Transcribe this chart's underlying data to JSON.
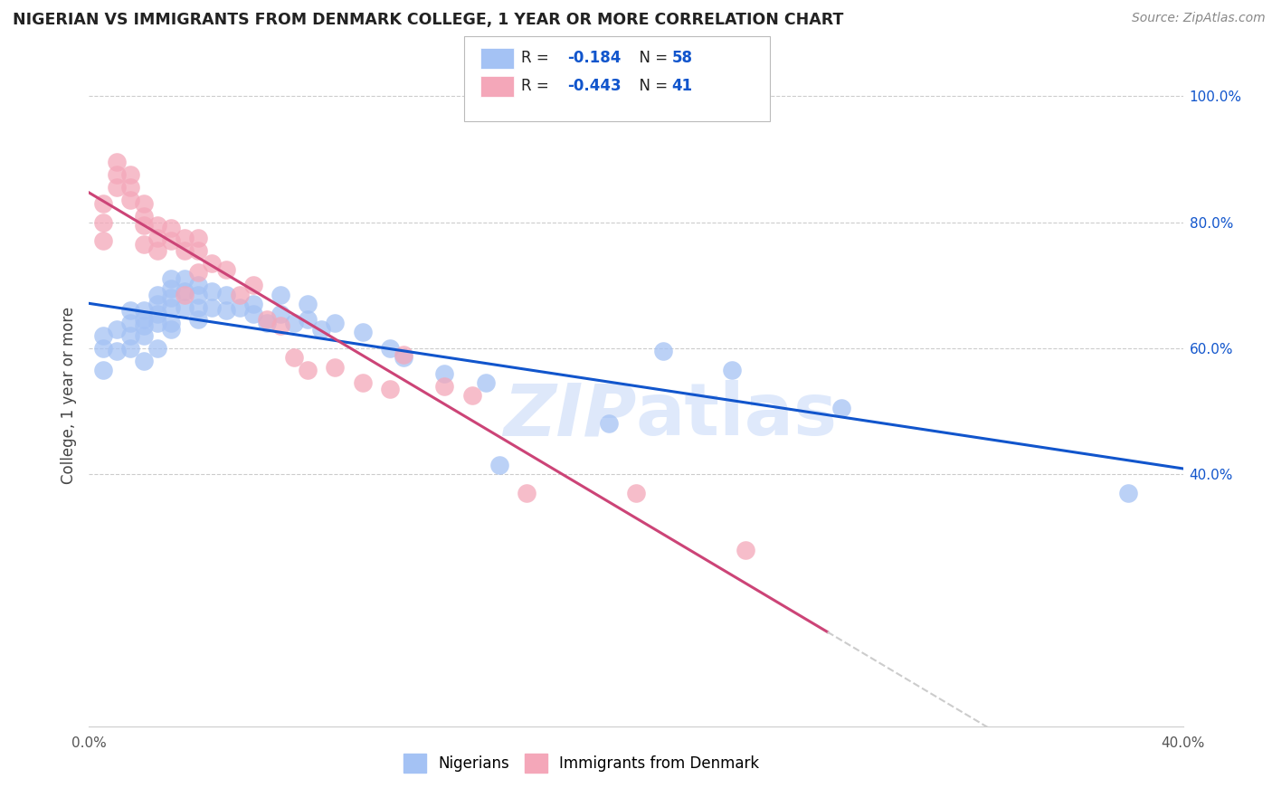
{
  "title": "NIGERIAN VS IMMIGRANTS FROM DENMARK COLLEGE, 1 YEAR OR MORE CORRELATION CHART",
  "source": "Source: ZipAtlas.com",
  "ylabel": "College, 1 year or more",
  "xlim": [
    0.0,
    0.4
  ],
  "ylim": [
    0.0,
    1.05
  ],
  "blue_color": "#a4c2f4",
  "pink_color": "#f4a7b9",
  "blue_line_color": "#1155cc",
  "pink_line_color": "#cc4477",
  "dashed_color": "#cccccc",
  "right_tick_color": "#1155cc",
  "watermark_color": "#c9daf8",
  "blue_scatter_x": [
    0.005,
    0.005,
    0.005,
    0.01,
    0.01,
    0.015,
    0.015,
    0.015,
    0.015,
    0.02,
    0.02,
    0.02,
    0.02,
    0.02,
    0.025,
    0.025,
    0.025,
    0.025,
    0.025,
    0.03,
    0.03,
    0.03,
    0.03,
    0.03,
    0.03,
    0.035,
    0.035,
    0.035,
    0.04,
    0.04,
    0.04,
    0.04,
    0.045,
    0.045,
    0.05,
    0.05,
    0.055,
    0.06,
    0.06,
    0.065,
    0.07,
    0.07,
    0.075,
    0.08,
    0.08,
    0.085,
    0.09,
    0.1,
    0.11,
    0.115,
    0.13,
    0.145,
    0.15,
    0.19,
    0.21,
    0.235,
    0.275,
    0.38
  ],
  "blue_scatter_y": [
    0.62,
    0.6,
    0.565,
    0.63,
    0.595,
    0.66,
    0.64,
    0.62,
    0.6,
    0.66,
    0.645,
    0.635,
    0.62,
    0.58,
    0.685,
    0.67,
    0.655,
    0.64,
    0.6,
    0.71,
    0.695,
    0.68,
    0.665,
    0.64,
    0.63,
    0.71,
    0.69,
    0.665,
    0.7,
    0.685,
    0.665,
    0.645,
    0.69,
    0.665,
    0.685,
    0.66,
    0.665,
    0.67,
    0.655,
    0.64,
    0.685,
    0.655,
    0.64,
    0.67,
    0.645,
    0.63,
    0.64,
    0.625,
    0.6,
    0.585,
    0.56,
    0.545,
    0.415,
    0.48,
    0.595,
    0.565,
    0.505,
    0.37
  ],
  "pink_scatter_x": [
    0.005,
    0.005,
    0.005,
    0.01,
    0.01,
    0.01,
    0.015,
    0.015,
    0.015,
    0.02,
    0.02,
    0.02,
    0.02,
    0.025,
    0.025,
    0.025,
    0.03,
    0.03,
    0.035,
    0.035,
    0.035,
    0.04,
    0.04,
    0.04,
    0.045,
    0.05,
    0.055,
    0.06,
    0.065,
    0.07,
    0.075,
    0.08,
    0.09,
    0.1,
    0.11,
    0.115,
    0.13,
    0.14,
    0.16,
    0.2,
    0.24
  ],
  "pink_scatter_y": [
    0.83,
    0.8,
    0.77,
    0.895,
    0.875,
    0.855,
    0.875,
    0.855,
    0.835,
    0.83,
    0.81,
    0.795,
    0.765,
    0.795,
    0.775,
    0.755,
    0.79,
    0.77,
    0.775,
    0.755,
    0.685,
    0.775,
    0.755,
    0.72,
    0.735,
    0.725,
    0.685,
    0.7,
    0.645,
    0.635,
    0.585,
    0.565,
    0.57,
    0.545,
    0.535,
    0.59,
    0.54,
    0.525,
    0.37,
    0.37,
    0.28
  ]
}
